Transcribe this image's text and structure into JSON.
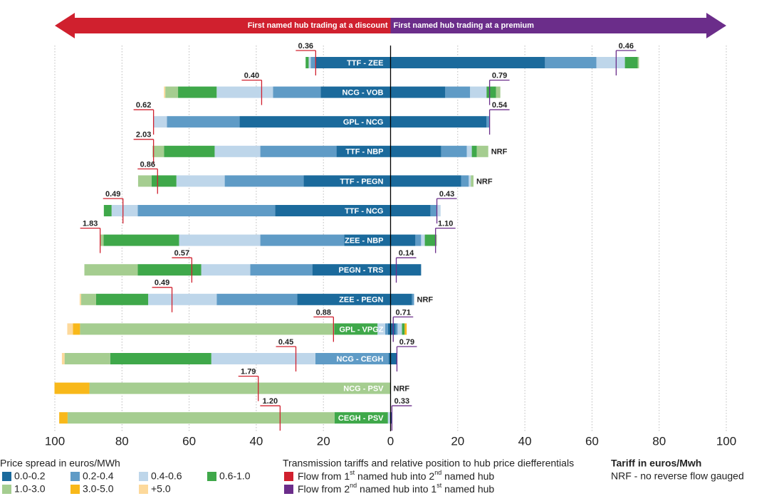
{
  "chart_data": {
    "type": "diverging-bar",
    "discount_label": "First named hub trading at a discount",
    "premium_label": "First named hub trading at a premium",
    "xlim": [
      -100,
      100
    ],
    "xticks": [
      {
        "value": -100,
        "label": "100"
      },
      {
        "value": -80,
        "label": "80"
      },
      {
        "value": -60,
        "label": "60"
      },
      {
        "value": -40,
        "label": "40"
      },
      {
        "value": -20,
        "label": "20"
      },
      0,
      20,
      40,
      60,
      80,
      100
    ],
    "grid": true,
    "bands_title": "Price spread in euros/MWh",
    "bands": [
      {
        "name": "0.0-0.2",
        "color": "#1b6a9c"
      },
      {
        "name": "0.2-0.4",
        "color": "#5f9bc6"
      },
      {
        "name": "0.4-0.6",
        "color": "#bed6ea"
      },
      {
        "name": "0.6-1.0",
        "color": "#3fa84a"
      },
      {
        "name": "1.0-3.0",
        "color": "#a5cd90"
      },
      {
        "name": "3.0-5.0",
        "color": "#f8b81a"
      },
      {
        "name": "+5.0",
        "color": "#fdd99b"
      }
    ],
    "flows_title": "Transmission tariffs and relative position to hub price diefferentials",
    "flows": [
      {
        "parts": [
          "Flow from 1",
          "st",
          " named hub into 2",
          "nd",
          " named hub"
        ],
        "color": "#d0202e"
      },
      {
        "parts": [
          "Flow from 2",
          "nd",
          " named hub into 1",
          "st",
          " named hub"
        ],
        "color": "#6b2d8a"
      }
    ],
    "tariff_title": "Tariff in euros/Mwh",
    "tariff_note": "NRF - no reverse flow gauged",
    "rows": [
      {
        "name": "TTF - ZEE",
        "discount": [
          22.5,
          1.3,
          0.6,
          0.9,
          0,
          0,
          0
        ],
        "premium": [
          46,
          15.3,
          8.5,
          3.8,
          0.4,
          0,
          0
        ],
        "red": {
          "tariff": 0.36,
          "position": 22.3
        },
        "purple": {
          "tariff": 0.46,
          "position": 67.2
        }
      },
      {
        "name": "NCG - VOB",
        "discount": [
          20.8,
          14.2,
          16.8,
          11.5,
          3.8,
          0,
          0.4
        ],
        "premium": [
          16.3,
          7.4,
          4.9,
          2.8,
          1.3,
          0,
          0
        ],
        "red": {
          "tariff": 0.4,
          "tariff_label": "0.40",
          "position": 38.4
        },
        "purple": {
          "tariff": 0.79,
          "position": 29.5
        }
      },
      {
        "name": "GPL - NCG",
        "discount": [
          45,
          21.6,
          4,
          0,
          0,
          0,
          0
        ],
        "premium": [
          28.6,
          0.8,
          0,
          0,
          0,
          0,
          0
        ],
        "red": {
          "tariff": 0.62,
          "position": 70.6
        },
        "purple": {
          "tariff": 0.54,
          "position": 29.5
        }
      },
      {
        "name": "TTF - NBP",
        "discount": [
          16.1,
          22.7,
          13.6,
          15.1,
          3.4,
          0,
          0
        ],
        "premium": [
          15.1,
          7.6,
          1.5,
          1.5,
          3.4,
          0,
          0
        ],
        "red": {
          "tariff": 2.03,
          "position": 70.6
        },
        "note": "NRF"
      },
      {
        "name": "TTF - PEGN",
        "discount": [
          25.9,
          23.5,
          14.4,
          7.4,
          4,
          0,
          0
        ],
        "premium": [
          21,
          2.3,
          0.6,
          0,
          0.8,
          0,
          0
        ],
        "red": {
          "tariff": 0.86,
          "position": 69.4
        },
        "note": "NRF"
      },
      {
        "name": "TTF - NCG",
        "discount": [
          34.4,
          40.9,
          7.8,
          2.3,
          0,
          0,
          0
        ],
        "premium": [
          11.9,
          1.9,
          1.1,
          0,
          0,
          0,
          0
        ],
        "red": {
          "tariff": 0.49,
          "position": 79.7
        },
        "purple": {
          "tariff": 0.43,
          "position": 13.8
        }
      },
      {
        "name": "ZEE - NBP",
        "discount": [
          13.8,
          25,
          24.2,
          22.5,
          1.1,
          0,
          0
        ],
        "premium": [
          7.4,
          1.7,
          1.1,
          3.2,
          0.4,
          0,
          0
        ],
        "red": {
          "tariff": 1.83,
          "position": 86.5
        },
        "purple": {
          "tariff": 1.1,
          "tariff_label": "1.10",
          "position": 13.4
        }
      },
      {
        "name": "PEGN - TRS",
        "discount": [
          23.3,
          18.5,
          14.6,
          18.9,
          15.9,
          0,
          0
        ],
        "premium": [
          9.1,
          0,
          0,
          0,
          0,
          0,
          0
        ],
        "red": {
          "tariff": 0.57,
          "position": 59.2
        },
        "purple": {
          "tariff": 0.14,
          "position": 1.7
        }
      },
      {
        "name": "ZEE - PEGN",
        "discount": [
          27.8,
          24,
          20.4,
          15.5,
          4.5,
          0,
          0.4
        ],
        "premium": [
          6.4,
          0.6,
          0,
          0,
          0,
          0,
          0
        ],
        "red": {
          "tariff": 0.49,
          "position": 65.1
        },
        "note": "NRF"
      },
      {
        "name": "GPL - VPGZ",
        "discount": [
          0.8,
          0.8,
          2.3,
          12.9,
          75.7,
          2.1,
          1.7
        ],
        "premium": [
          1.5,
          0.6,
          1.3,
          0.8,
          0,
          0.6,
          0
        ],
        "red": {
          "tariff": 0.88,
          "position": 17
        },
        "purple": {
          "tariff": 0.71,
          "position": 0.8
        }
      },
      {
        "name": "NCG - CEGH",
        "discount": [
          0.6,
          21.8,
          31,
          30.1,
          13.6,
          0,
          0.8
        ],
        "premium": [
          1.9,
          0,
          0,
          0,
          0,
          0,
          0
        ],
        "red": {
          "tariff": 0.45,
          "position": 28.2
        },
        "purple": {
          "tariff": 0.79,
          "position": 1.9
        }
      },
      {
        "name": "NCG - PSV",
        "discount": [
          0,
          0,
          0,
          0,
          89.7,
          10.4,
          0
        ],
        "premium": [
          0,
          0,
          0,
          0,
          0,
          0,
          0
        ],
        "red": {
          "tariff": 1.79,
          "position": 39.4
        },
        "note": "NRF"
      },
      {
        "name": "CEGH - PSV",
        "discount": [
          0,
          0,
          0.8,
          15.9,
          79.5,
          2.5,
          0
        ],
        "premium": [
          0.4,
          0,
          0,
          0,
          0,
          0,
          0
        ],
        "red": {
          "tariff": 1.2,
          "tariff_label": "1.20",
          "position": 32.9
        },
        "purple": {
          "tariff": 0.33,
          "position": 0.4
        }
      }
    ]
  }
}
